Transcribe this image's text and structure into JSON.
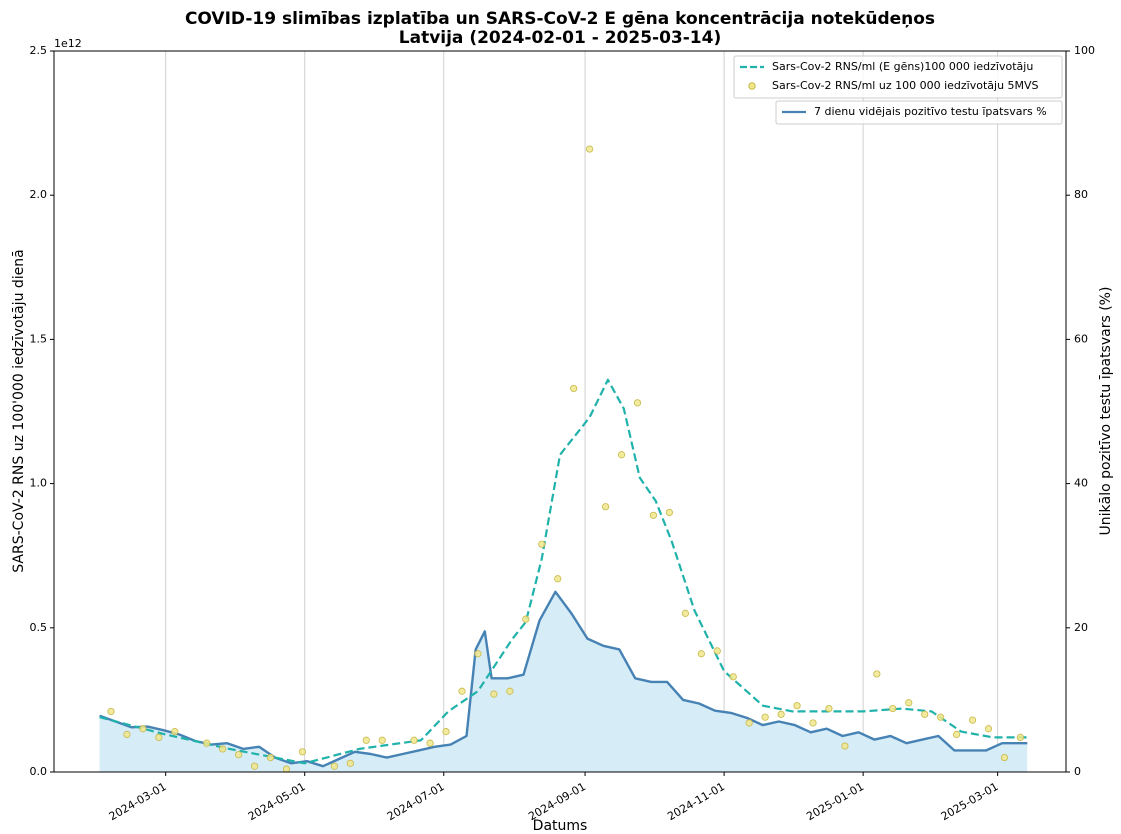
{
  "chart_data": {
    "type": "line",
    "title": [
      "COVID-19 slimības izplatība un SARS-CoV-2 E gēna koncentrācija notekūdeņos",
      "Latvija (2024-02-01 - 2025-03-14)"
    ],
    "x_label": "Datums",
    "y_label": "SARS-CoV-2 RNS uz 100'000 iedzīvotāju dienā",
    "y2_label": "Unikālo pozitīvo testu īpatsvars (%)",
    "y_offset_label": "1e12",
    "xlim": [
      "2024-01-12",
      "2025-03-31"
    ],
    "xticks": [
      "2024-03-01",
      "2024-05-01",
      "2024-07-01",
      "2024-09-01",
      "2024-11-01",
      "2025-01-01",
      "2025-03-01"
    ],
    "ylim": [
      0,
      2.5
    ],
    "yticks": [
      {
        "value": 0,
        "label": "0.0"
      },
      0.5,
      {
        "value": 1,
        "label": "1.0"
      },
      1.5,
      {
        "value": 2,
        "label": "2.0"
      },
      2.5
    ],
    "y2lim": [
      0,
      100
    ],
    "y2ticks": [
      0,
      20,
      40,
      60,
      80,
      100
    ],
    "grid": "x",
    "legend": "upper right",
    "series": [
      {
        "name": "Sars-Cov-2 RNS/ml (E gēns)100 000 iedzīvotāju",
        "type": "line",
        "style": "dashed",
        "color": "#20b2aa",
        "x": [
          "2024-02-01",
          "2024-03-01",
          "2024-03-29",
          "2024-05-01",
          "2024-05-25",
          "2024-06-21",
          "2024-07-03",
          "2024-07-16",
          "2024-07-31",
          "2024-08-06",
          "2024-08-13",
          "2024-08-21",
          "2024-09-03",
          "2024-09-11",
          "2024-09-18",
          "2024-09-25",
          "2024-10-02",
          "2024-10-09",
          "2024-10-19",
          "2024-11-01",
          "2024-11-18",
          "2024-12-01",
          "2024-12-19",
          "2025-01-01",
          "2025-01-18",
          "2025-01-31",
          "2025-02-13",
          "2025-02-27",
          "2025-03-14"
        ],
        "values": [
          0.19,
          0.13,
          0.08,
          0.03,
          0.08,
          0.11,
          0.21,
          0.28,
          0.46,
          0.52,
          0.74,
          1.1,
          1.23,
          1.36,
          1.26,
          1.02,
          0.94,
          0.8,
          0.56,
          0.35,
          0.23,
          0.21,
          0.21,
          0.21,
          0.22,
          0.21,
          0.14,
          0.12,
          0.12
        ]
      },
      {
        "name": "Sars-Cov-2 RNS/ml uz 100 000 iedzīvotāju 5MVS",
        "type": "scatter",
        "color": "#f0e68c",
        "edge_color": "#c8b84a",
        "x": [
          "2024-02-06",
          "2024-02-13",
          "2024-02-20",
          "2024-02-27",
          "2024-03-05",
          "2024-03-19",
          "2024-03-26",
          "2024-04-02",
          "2024-04-09",
          "2024-04-16",
          "2024-04-23",
          "2024-04-30",
          "2024-05-14",
          "2024-05-21",
          "2024-05-28",
          "2024-06-04",
          "2024-06-18",
          "2024-06-25",
          "2024-07-02",
          "2024-07-09",
          "2024-07-16",
          "2024-07-23",
          "2024-07-30",
          "2024-08-06",
          "2024-08-13",
          "2024-08-20",
          "2024-08-27",
          "2024-09-03",
          "2024-09-10",
          "2024-09-17",
          "2024-09-24",
          "2024-10-01",
          "2024-10-08",
          "2024-10-15",
          "2024-10-22",
          "2024-10-29",
          "2024-11-05",
          "2024-11-12",
          "2024-11-19",
          "2024-11-26",
          "2024-12-03",
          "2024-12-10",
          "2024-12-17",
          "2024-12-24",
          "2025-01-07",
          "2025-01-14",
          "2025-01-21",
          "2025-01-28",
          "2025-02-04",
          "2025-02-11",
          "2025-02-18",
          "2025-02-25",
          "2025-03-04",
          "2025-03-11"
        ],
        "values": [
          0.21,
          0.13,
          0.15,
          0.12,
          0.14,
          0.1,
          0.08,
          0.06,
          0.02,
          0.05,
          0.01,
          0.07,
          0.02,
          0.03,
          0.11,
          0.11,
          0.11,
          0.1,
          0.14,
          0.28,
          0.41,
          0.27,
          0.28,
          0.53,
          0.79,
          0.67,
          1.33,
          2.16,
          0.92,
          1.1,
          1.28,
          0.89,
          0.9,
          0.55,
          0.41,
          0.42,
          0.33,
          0.17,
          0.19,
          0.2,
          0.23,
          0.17,
          0.22,
          0.09,
          0.34,
          0.22,
          0.24,
          0.2,
          0.19,
          0.13,
          0.18,
          0.15,
          0.05,
          0.12
        ]
      },
      {
        "name": "7 dienu vidējais pozitīvo testu īpatsvars %",
        "type": "line",
        "style": "solid",
        "fill": "#d6ecf7",
        "color": "#4682b4",
        "axis": "y2",
        "x": [
          "2024-02-01",
          "2024-02-08",
          "2024-02-15",
          "2024-02-22",
          "2024-02-29",
          "2024-03-07",
          "2024-03-14",
          "2024-03-21",
          "2024-03-28",
          "2024-04-04",
          "2024-04-11",
          "2024-04-18",
          "2024-04-25",
          "2024-05-02",
          "2024-05-09",
          "2024-05-16",
          "2024-05-23",
          "2024-05-30",
          "2024-06-06",
          "2024-06-13",
          "2024-06-20",
          "2024-06-27",
          "2024-07-04",
          "2024-07-11",
          "2024-07-15",
          "2024-07-19",
          "2024-07-22",
          "2024-07-29",
          "2024-08-05",
          "2024-08-12",
          "2024-08-19",
          "2024-08-26",
          "2024-09-02",
          "2024-09-09",
          "2024-09-16",
          "2024-09-23",
          "2024-09-30",
          "2024-10-07",
          "2024-10-14",
          "2024-10-21",
          "2024-10-28",
          "2024-11-04",
          "2024-11-11",
          "2024-11-18",
          "2024-11-25",
          "2024-12-02",
          "2024-12-09",
          "2024-12-16",
          "2024-12-23",
          "2024-12-30",
          "2025-01-06",
          "2025-01-13",
          "2025-01-20",
          "2025-01-27",
          "2025-02-03",
          "2025-02-10",
          "2025-02-17",
          "2025-02-24",
          "2025-03-03",
          "2025-03-10",
          "2025-03-14"
        ],
        "values": [
          7.8,
          7.0,
          6.2,
          6.3,
          5.8,
          5.2,
          4.3,
          3.8,
          4.0,
          3.2,
          3.5,
          2.0,
          1.2,
          1.5,
          0.8,
          1.8,
          2.8,
          2.5,
          2.0,
          2.5,
          3.0,
          3.5,
          3.8,
          5.0,
          17,
          19.5,
          13,
          13,
          13.5,
          21,
          25,
          22,
          18.5,
          17.5,
          17,
          13,
          12.5,
          12.5,
          10,
          9.5,
          8.5,
          8.2,
          7.5,
          6.5,
          7.0,
          6.5,
          5.5,
          6.0,
          5.0,
          5.5,
          4.5,
          5.0,
          4.0,
          4.5,
          5.0,
          3.0,
          3.0,
          3.0,
          4.0,
          4.0,
          4.0
        ]
      }
    ]
  }
}
